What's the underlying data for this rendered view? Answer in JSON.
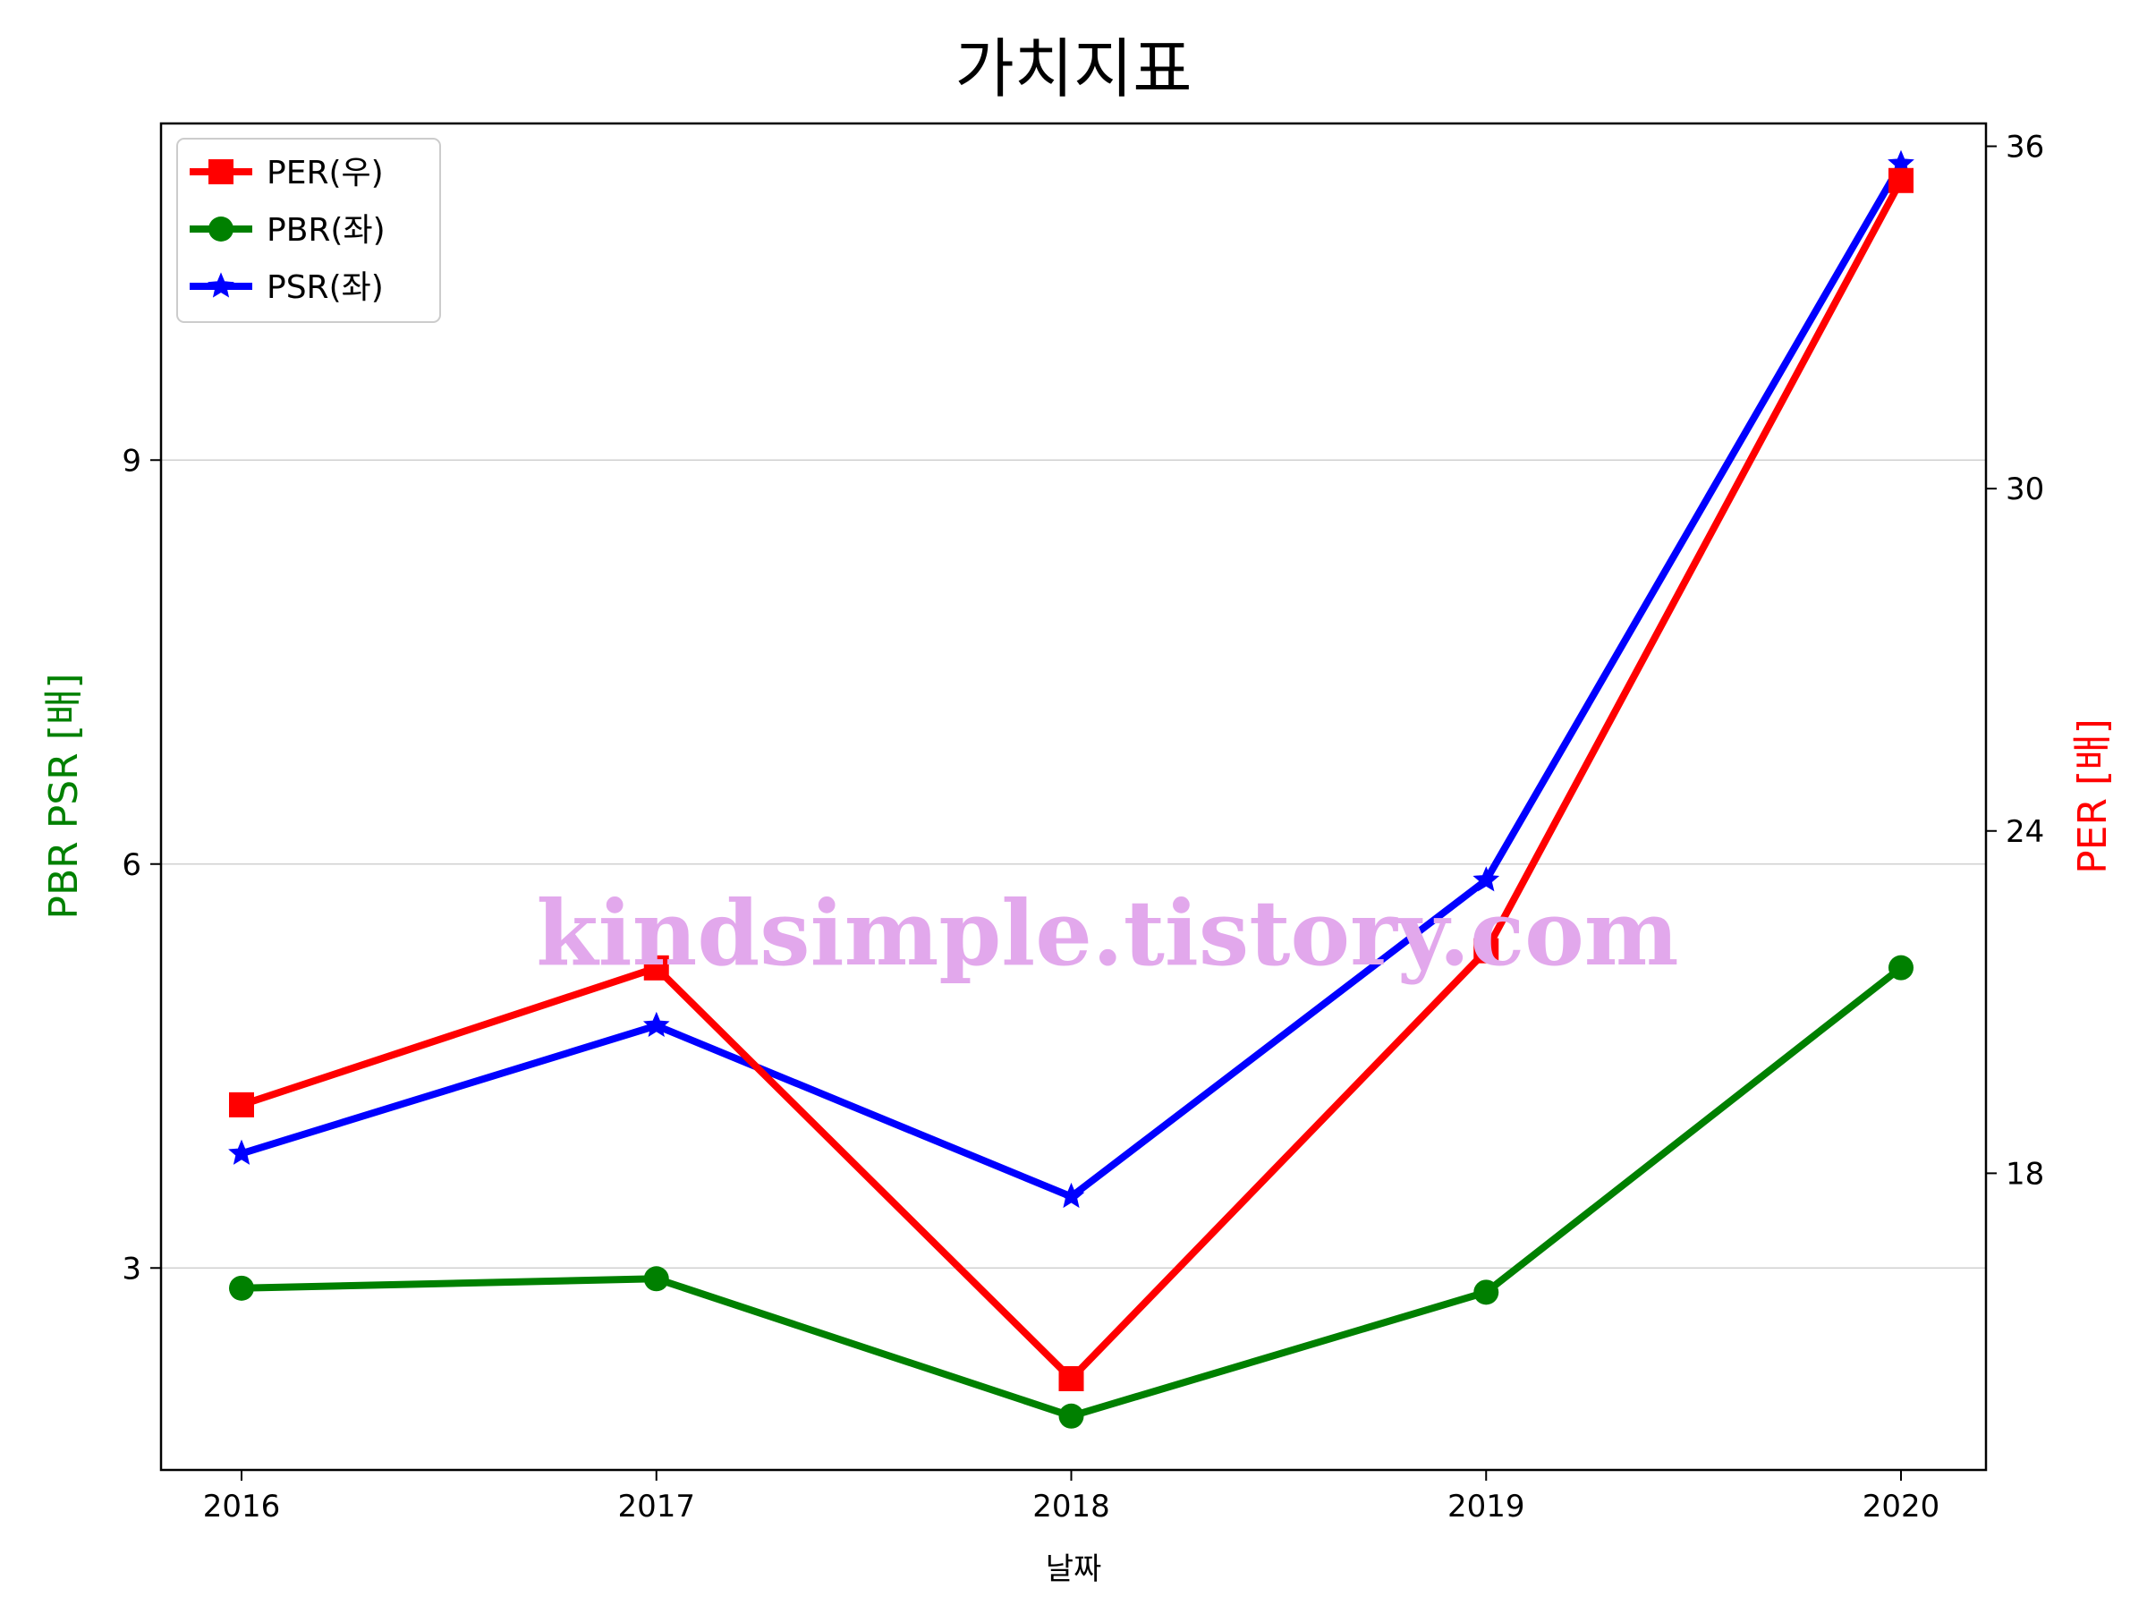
{
  "chart_data": {
    "type": "line",
    "title": "가치지표",
    "xlabel": "날짜",
    "ylabel_left": "PBR PSR [배]",
    "ylabel_right": "PER [배]",
    "categories": [
      "2016",
      "2017",
      "2018",
      "2019",
      "2020"
    ],
    "left_axis": {
      "ylim": [
        1.5,
        11.5
      ],
      "ticks": [
        3,
        6,
        9
      ]
    },
    "right_axis": {
      "ylim": [
        12.8,
        36.4
      ],
      "ticks": [
        18,
        24,
        30,
        36
      ]
    },
    "grid": "horizontal",
    "legend_position": "top-left",
    "series": [
      {
        "name": "PER(우)",
        "axis": "right",
        "color": "#ff0000",
        "marker": "square",
        "values": [
          19.2,
          21.6,
          14.4,
          21.9,
          35.4
        ]
      },
      {
        "name": "PBR(좌)",
        "axis": "left",
        "color": "#008000",
        "marker": "circle",
        "values": [
          2.85,
          2.92,
          1.9,
          2.82,
          5.23
        ]
      },
      {
        "name": "PSR(좌)",
        "axis": "left",
        "color": "#0000ff",
        "marker": "star",
        "values": [
          3.85,
          4.8,
          3.53,
          5.88,
          11.2
        ]
      }
    ]
  },
  "watermark": "kindsimple.tistory.com"
}
